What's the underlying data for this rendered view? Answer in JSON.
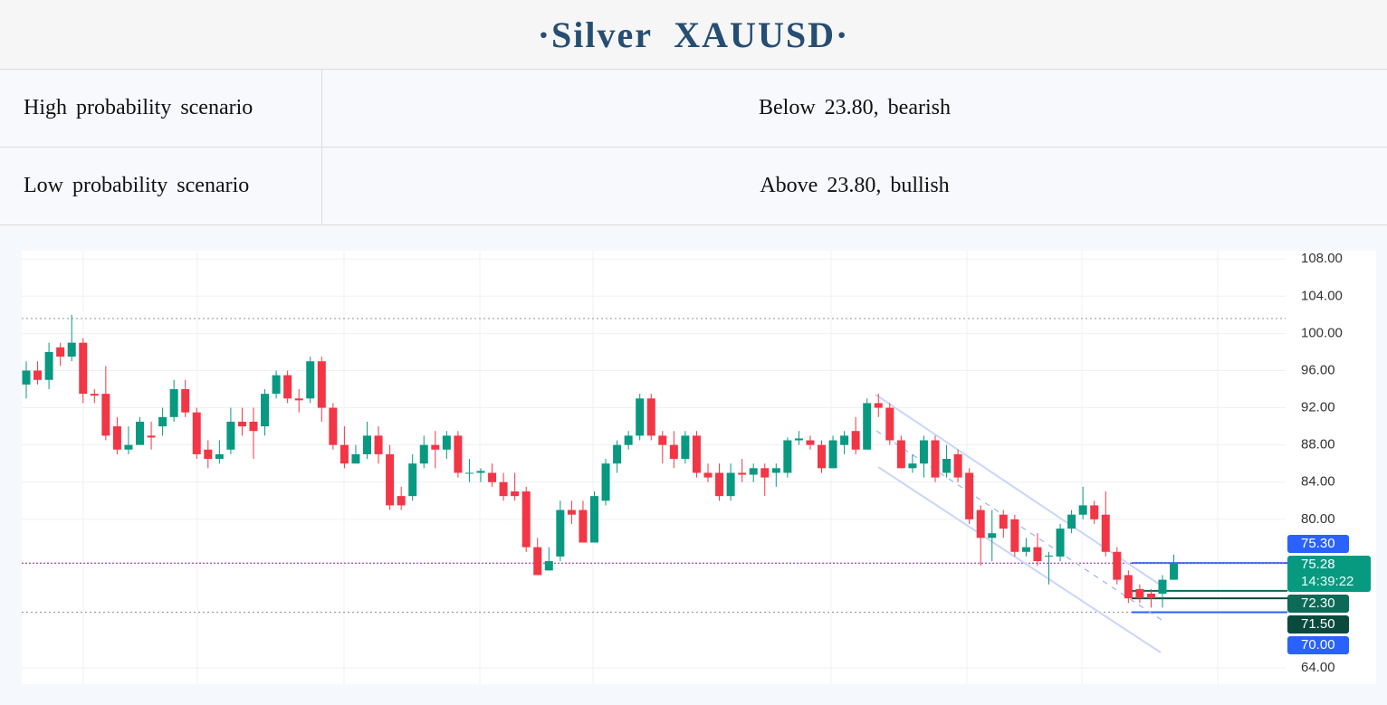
{
  "header": {
    "title": "·Silver  XAUUSD·"
  },
  "table": {
    "rows": [
      [
        "High probability scenario",
        "Below 23.80, bearish"
      ],
      [
        "Low probability scenario",
        "Above 23.80, bullish"
      ]
    ]
  },
  "chart_data": {
    "type": "candlestick",
    "up_color": "#089981",
    "down_color": "#f23645",
    "open": [
      94.5,
      96,
      95,
      98.5,
      97.5,
      99,
      93.5,
      93.5,
      90,
      87.5,
      88,
      89,
      90,
      91,
      94,
      91.5,
      87.5,
      86.5,
      87.5,
      90.5,
      90.5,
      90,
      93.5,
      95.5,
      93,
      93,
      97,
      92,
      88,
      86,
      87,
      89,
      87,
      82.5,
      82.5,
      86,
      88,
      87.5,
      89,
      85,
      85,
      85,
      84,
      83,
      83,
      77,
      74.5,
      76,
      81,
      81,
      77.5,
      82,
      86,
      88,
      89,
      93,
      89,
      88,
      86.5,
      89,
      85,
      85,
      82.5,
      85,
      84.8,
      85.5,
      85,
      85,
      88.5,
      88.5,
      88,
      85.5,
      88,
      89.5,
      87.5,
      92.5,
      92,
      88.5,
      85.5,
      86,
      88.5,
      85,
      87,
      85,
      81,
      78,
      80.5,
      80,
      76.5,
      77,
      76,
      76,
      79,
      80.5,
      81.5,
      80.5,
      76.5,
      74,
      72.5,
      72,
      72,
      73.5
    ],
    "high": [
      97,
      97,
      99,
      99,
      102,
      99.5,
      94,
      96.5,
      91,
      90,
      91,
      90.5,
      92,
      95,
      95,
      92,
      88.5,
      88.5,
      92,
      92,
      92,
      94,
      96,
      96,
      94,
      97.5,
      97.5,
      92.5,
      90,
      88,
      90.5,
      90,
      88,
      83.5,
      87,
      89,
      89.5,
      89.5,
      89.5,
      86.5,
      85.5,
      86,
      85,
      85,
      83.5,
      78,
      77,
      82,
      82,
      82,
      83,
      86.5,
      88.5,
      89.5,
      93.5,
      93.5,
      89.5,
      89.5,
      89.5,
      89.5,
      86,
      86,
      86,
      86.5,
      86,
      86,
      86,
      88.8,
      89.5,
      89,
      88.5,
      89,
      89.5,
      91,
      93,
      93.5,
      92.5,
      89,
      87,
      89,
      89,
      88,
      87.5,
      85.5,
      81.5,
      81,
      81,
      80.5,
      78,
      78.5,
      76.5,
      79.5,
      81,
      83.5,
      82,
      83,
      77,
      74.5,
      73,
      72.5,
      74,
      76.2
    ],
    "low": [
      93,
      94.5,
      94,
      96.5,
      97,
      92.5,
      92.5,
      88.5,
      87,
      87,
      88,
      87.5,
      89,
      90.5,
      91,
      86.5,
      85.5,
      86,
      87,
      89,
      86.5,
      89,
      93,
      92.5,
      91.5,
      92.5,
      90.5,
      87.5,
      85.5,
      86,
      86.5,
      86,
      81,
      81,
      82,
      85.5,
      85.5,
      86.5,
      84.5,
      84,
      84,
      83.5,
      82,
      82,
      76.5,
      74,
      74.5,
      75.5,
      79.5,
      77.5,
      77.5,
      81.5,
      85,
      87.5,
      88.5,
      88.5,
      86,
      85.5,
      86,
      84.5,
      84,
      82,
      82,
      84,
      84,
      82.5,
      83.5,
      84.5,
      88,
      87.5,
      85,
      85.5,
      87,
      87,
      87.5,
      91,
      88,
      85.5,
      85,
      84.5,
      84,
      84.5,
      84,
      79.5,
      75,
      75.5,
      78,
      76,
      76,
      75,
      73,
      75.5,
      78.5,
      80,
      79.5,
      76,
      73,
      71,
      71,
      70.5,
      70.5,
      73.5
    ],
    "close": [
      96,
      95,
      98,
      97.5,
      99,
      93.5,
      93.3,
      89,
      87.5,
      88,
      90.5,
      88.8,
      91,
      94,
      91.5,
      87,
      86.5,
      87,
      90.5,
      90,
      89.5,
      93.5,
      95.5,
      93,
      92.8,
      97,
      92,
      88,
      86,
      87,
      89,
      87,
      81.5,
      81.5,
      86,
      88,
      87.5,
      89,
      85,
      85,
      85.2,
      84,
      82.5,
      82.5,
      77,
      74,
      75.5,
      81,
      80.5,
      77.5,
      82.5,
      86,
      88,
      89,
      93,
      89,
      88,
      86.5,
      89,
      85,
      84.5,
      82.5,
      85,
      84.8,
      85.5,
      84.5,
      85.5,
      88.5,
      88.7,
      88,
      85.5,
      88.5,
      89,
      87.5,
      92.5,
      92,
      88.5,
      85.5,
      86,
      88.5,
      84.5,
      86.5,
      84.5,
      80,
      78,
      78.5,
      79,
      76.5,
      77,
      75.5,
      76.1,
      79,
      80.5,
      81.5,
      80,
      76.5,
      73.5,
      71.5,
      71.5,
      71.5,
      73.5,
      75.28
    ],
    "ylim": [
      62.4,
      108.8
    ],
    "yticks": [
      {
        "value": 64,
        "label": "64.00"
      },
      {
        "value": 80,
        "label": "80.00"
      },
      {
        "value": 84,
        "label": "84.00"
      },
      {
        "value": 88,
        "label": "88.00"
      },
      {
        "value": 92,
        "label": "92.00"
      },
      {
        "value": 96,
        "label": "96.00"
      },
      {
        "value": 100,
        "label": "100.00"
      },
      {
        "value": 104,
        "label": "104.00"
      },
      {
        "value": 108,
        "label": "108.00"
      }
    ],
    "grid": true,
    "hlines": [
      {
        "value": 101.6,
        "color": "#9aa0a8"
      },
      {
        "value": 70,
        "color": "#9aa0a8"
      }
    ],
    "price_labels": [
      {
        "value": 75.3,
        "label": "75.30",
        "color": "#2962ff"
      },
      {
        "value": 75.28,
        "label": "75.28",
        "countdown": "14:39:22",
        "color": "#089981",
        "full_line_color": "#b455c8"
      },
      {
        "value": 72.3,
        "label": "72.30",
        "color": "#0b6b57"
      },
      {
        "value": 71.5,
        "label": "71.50",
        "color": "#0a4a3c"
      },
      {
        "value": 70,
        "label": "70.00",
        "color": "#2962ff"
      }
    ]
  }
}
